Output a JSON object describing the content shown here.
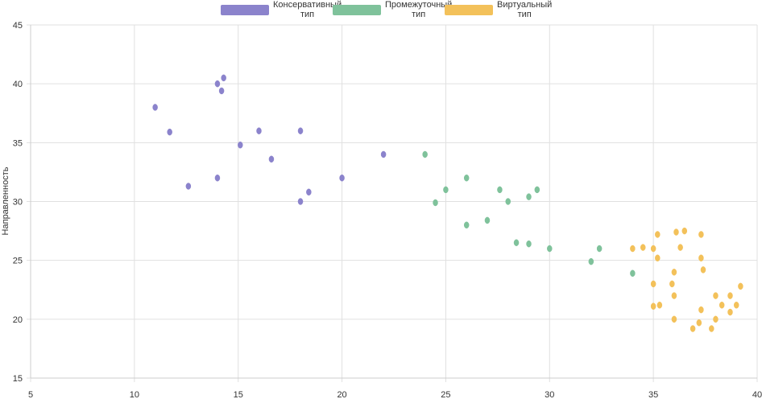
{
  "chart_data": {
    "type": "scatter",
    "title": "",
    "xlabel": "",
    "ylabel": "Направленность",
    "xlim": [
      5,
      40
    ],
    "ylim": [
      15,
      45
    ],
    "xticks": [
      "5",
      "10",
      "15",
      "20",
      "25",
      "30",
      "35",
      "40"
    ],
    "yticks": [
      "15",
      "20",
      "25",
      "30",
      "35",
      "40",
      "45"
    ],
    "grid": true,
    "legend_position": "top-center",
    "series": [
      {
        "name_line1": "Консервативный",
        "name_line2": "тип",
        "color": "#8b83cc",
        "points": [
          [
            11,
            38
          ],
          [
            11.7,
            35.9
          ],
          [
            12.6,
            31.3
          ],
          [
            14,
            40
          ],
          [
            14.3,
            40.5
          ],
          [
            14.2,
            39.4
          ],
          [
            14,
            32
          ],
          [
            15.1,
            34.8
          ],
          [
            16,
            36
          ],
          [
            16.6,
            33.6
          ],
          [
            18,
            36
          ],
          [
            18,
            30
          ],
          [
            18.4,
            30.8
          ],
          [
            20,
            32
          ],
          [
            22,
            34
          ]
        ]
      },
      {
        "name_line1": "Промежуточный",
        "name_line2": "тип",
        "color": "#7fc29b",
        "points": [
          [
            24,
            34
          ],
          [
            24.5,
            29.9
          ],
          [
            25,
            31
          ],
          [
            26,
            32
          ],
          [
            26,
            28
          ],
          [
            27,
            28.4
          ],
          [
            27.6,
            31
          ],
          [
            28,
            30
          ],
          [
            28.4,
            26.5
          ],
          [
            29,
            30.4
          ],
          [
            29,
            26.4
          ],
          [
            29.4,
            31
          ],
          [
            30,
            26
          ],
          [
            32,
            24.9
          ],
          [
            32.4,
            26
          ],
          [
            34,
            23.9
          ]
        ]
      },
      {
        "name_line1": "Виртуальный",
        "name_line2": "тип",
        "color": "#f3c15a",
        "points": [
          [
            34,
            26
          ],
          [
            34.5,
            26.1
          ],
          [
            35,
            26
          ],
          [
            35.2,
            27.2
          ],
          [
            35.2,
            25.2
          ],
          [
            35,
            23
          ],
          [
            35,
            21.1
          ],
          [
            35.3,
            21.2
          ],
          [
            36,
            24
          ],
          [
            35.9,
            23
          ],
          [
            36,
            22
          ],
          [
            36,
            20
          ],
          [
            36.1,
            27.4
          ],
          [
            36.3,
            26.1
          ],
          [
            36.5,
            27.5
          ],
          [
            37.3,
            27.2
          ],
          [
            37.3,
            25.2
          ],
          [
            37.4,
            24.2
          ],
          [
            37.3,
            20.8
          ],
          [
            37.2,
            19.7
          ],
          [
            36.9,
            19.2
          ],
          [
            37.8,
            19.2
          ],
          [
            38,
            22
          ],
          [
            38,
            20
          ],
          [
            38.3,
            21.2
          ],
          [
            38.7,
            22
          ],
          [
            38.7,
            20.6
          ],
          [
            39,
            21.2
          ],
          [
            39.2,
            22.8
          ]
        ]
      }
    ]
  }
}
